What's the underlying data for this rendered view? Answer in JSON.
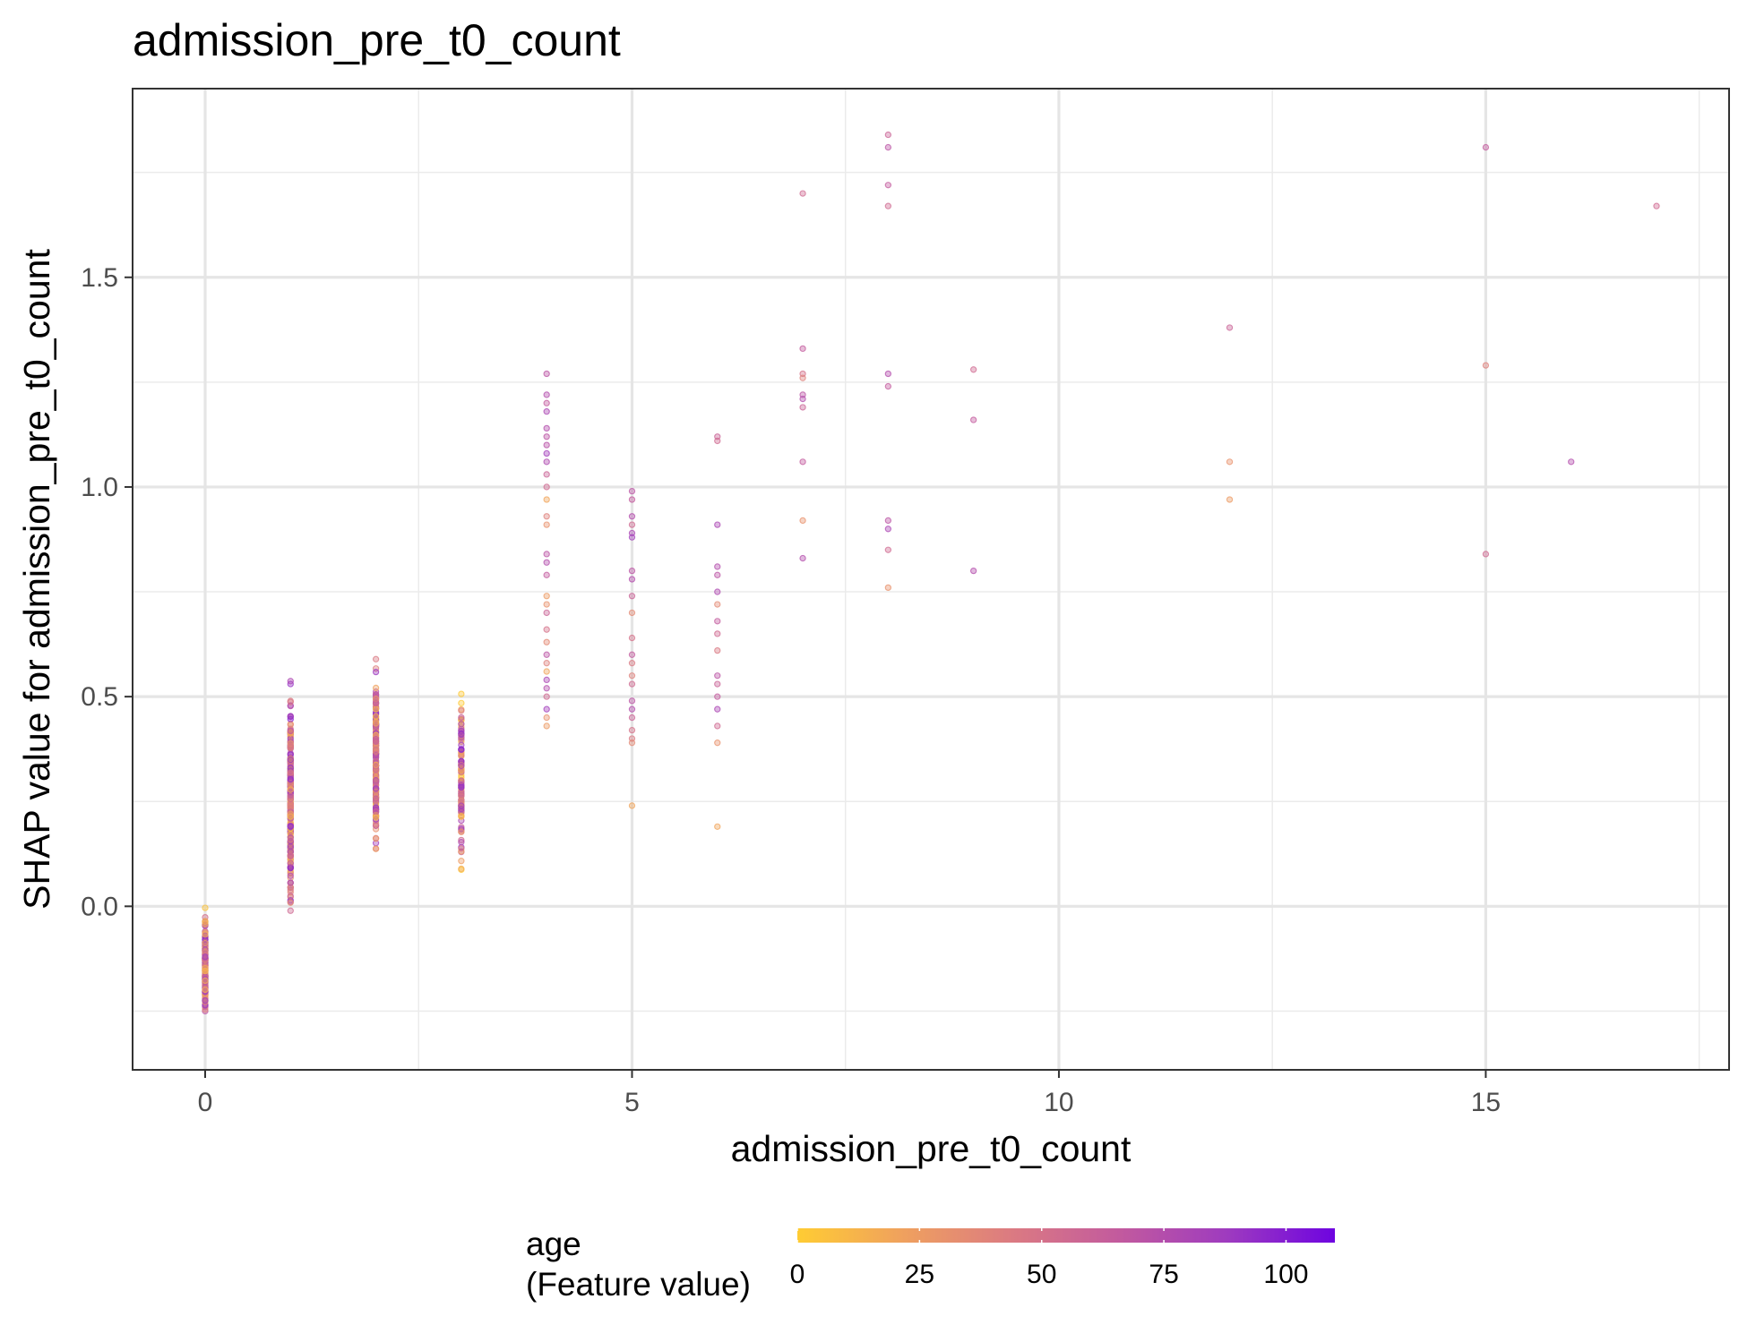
{
  "chart_data": {
    "type": "scatter",
    "title": "admission_pre_t0_count",
    "xlabel": "admission_pre_t0_count",
    "ylabel": "SHAP value for admission_pre_t0_count",
    "xlim": [
      -0.85,
      17.85
    ],
    "ylim": [
      -0.39,
      1.95
    ],
    "x_ticks": [
      0,
      5,
      10,
      15
    ],
    "x_tick_labels": [
      "0",
      "5",
      "10",
      "15"
    ],
    "y_ticks": [
      0.0,
      0.5,
      1.0,
      1.5
    ],
    "y_tick_labels": [
      "0.0",
      "0.5",
      "1.0",
      "1.5"
    ],
    "grid": true,
    "point_alpha": 0.4,
    "legend": {
      "position": "bottom",
      "title_lines": [
        "age",
        "(Feature value)"
      ],
      "range": [
        0,
        110
      ],
      "ticks": [
        0,
        25,
        50,
        75,
        100
      ],
      "tick_labels": [
        "0",
        "25",
        "50",
        "75",
        "100"
      ],
      "colors": [
        "#FFCC33",
        "#EFA05F",
        "#DB7A82",
        "#C25A9E",
        "#9E3BBF",
        "#6E04E0"
      ]
    },
    "clusters": [
      {
        "x": 0,
        "y_min": -0.29,
        "y_max": 0.01,
        "count": 180,
        "age_min": 0,
        "age_max": 100
      },
      {
        "x": 1,
        "y_min": -0.07,
        "y_max": 0.59,
        "count": 240,
        "age_min": 0,
        "age_max": 100
      },
      {
        "x": 2,
        "y_min": 0.07,
        "y_max": 0.63,
        "count": 200,
        "age_min": 0,
        "age_max": 100
      },
      {
        "x": 3,
        "y_min": 0.03,
        "y_max": 0.56,
        "count": 110,
        "age_min": 0,
        "age_max": 100
      }
    ],
    "points": [
      [
        4,
        1.27,
        70
      ],
      [
        4,
        1.22,
        75
      ],
      [
        4,
        1.2,
        65
      ],
      [
        4,
        1.18,
        80
      ],
      [
        4,
        1.14,
        75
      ],
      [
        4,
        1.12,
        70
      ],
      [
        4,
        1.1,
        72
      ],
      [
        4,
        1.08,
        85
      ],
      [
        4,
        1.06,
        78
      ],
      [
        4,
        1.03,
        60
      ],
      [
        4,
        1.0,
        55
      ],
      [
        4,
        0.97,
        20
      ],
      [
        4,
        0.93,
        40
      ],
      [
        4,
        0.91,
        30
      ],
      [
        4,
        0.84,
        70
      ],
      [
        4,
        0.82,
        75
      ],
      [
        4,
        0.79,
        65
      ],
      [
        4,
        0.74,
        25
      ],
      [
        4,
        0.72,
        30
      ],
      [
        4,
        0.7,
        60
      ],
      [
        4,
        0.66,
        50
      ],
      [
        4,
        0.63,
        35
      ],
      [
        4,
        0.6,
        70
      ],
      [
        4,
        0.58,
        40
      ],
      [
        4,
        0.56,
        20
      ],
      [
        4,
        0.54,
        80
      ],
      [
        4,
        0.52,
        75
      ],
      [
        4,
        0.5,
        55
      ],
      [
        4,
        0.47,
        85
      ],
      [
        4,
        0.45,
        30
      ],
      [
        4,
        0.43,
        25
      ],
      [
        5,
        0.99,
        70
      ],
      [
        5,
        0.97,
        65
      ],
      [
        5,
        0.93,
        75
      ],
      [
        5,
        0.91,
        55
      ],
      [
        5,
        0.89,
        80
      ],
      [
        5,
        0.88,
        85
      ],
      [
        5,
        0.8,
        70
      ],
      [
        5,
        0.78,
        75
      ],
      [
        5,
        0.74,
        60
      ],
      [
        5,
        0.7,
        35
      ],
      [
        5,
        0.64,
        50
      ],
      [
        5,
        0.6,
        65
      ],
      [
        5,
        0.58,
        45
      ],
      [
        5,
        0.55,
        40
      ],
      [
        5,
        0.53,
        55
      ],
      [
        5,
        0.49,
        70
      ],
      [
        5,
        0.47,
        75
      ],
      [
        5,
        0.45,
        60
      ],
      [
        5,
        0.42,
        50
      ],
      [
        5,
        0.4,
        45
      ],
      [
        5,
        0.39,
        35
      ],
      [
        5,
        0.24,
        20
      ],
      [
        6,
        1.12,
        60
      ],
      [
        6,
        1.11,
        55
      ],
      [
        6,
        0.91,
        80
      ],
      [
        6,
        0.81,
        75
      ],
      [
        6,
        0.79,
        70
      ],
      [
        6,
        0.75,
        78
      ],
      [
        6,
        0.72,
        35
      ],
      [
        6,
        0.68,
        65
      ],
      [
        6,
        0.65,
        55
      ],
      [
        6,
        0.61,
        45
      ],
      [
        6,
        0.55,
        70
      ],
      [
        6,
        0.53,
        60
      ],
      [
        6,
        0.5,
        65
      ],
      [
        6,
        0.47,
        80
      ],
      [
        6,
        0.43,
        55
      ],
      [
        6,
        0.39,
        30
      ],
      [
        6,
        0.19,
        20
      ],
      [
        7,
        1.7,
        55
      ],
      [
        7,
        1.33,
        65
      ],
      [
        7,
        1.27,
        50
      ],
      [
        7,
        1.26,
        40
      ],
      [
        7,
        1.22,
        70
      ],
      [
        7,
        1.21,
        75
      ],
      [
        7,
        1.19,
        60
      ],
      [
        7,
        1.06,
        65
      ],
      [
        7,
        0.92,
        30
      ],
      [
        7,
        0.83,
        75
      ],
      [
        8,
        1.84,
        60
      ],
      [
        8,
        1.81,
        70
      ],
      [
        8,
        1.72,
        65
      ],
      [
        8,
        1.67,
        55
      ],
      [
        8,
        1.27,
        75
      ],
      [
        8,
        1.24,
        65
      ],
      [
        8,
        0.92,
        70
      ],
      [
        8,
        0.9,
        80
      ],
      [
        8,
        0.85,
        55
      ],
      [
        8,
        0.76,
        30
      ],
      [
        9,
        1.28,
        55
      ],
      [
        9,
        1.16,
        65
      ],
      [
        9,
        0.8,
        75
      ],
      [
        12,
        1.38,
        60
      ],
      [
        12,
        1.06,
        30
      ],
      [
        12,
        0.97,
        25
      ],
      [
        15,
        1.81,
        65
      ],
      [
        15,
        1.29,
        40
      ],
      [
        15,
        0.84,
        55
      ],
      [
        16,
        1.06,
        75
      ],
      [
        17,
        1.67,
        55
      ]
    ]
  }
}
